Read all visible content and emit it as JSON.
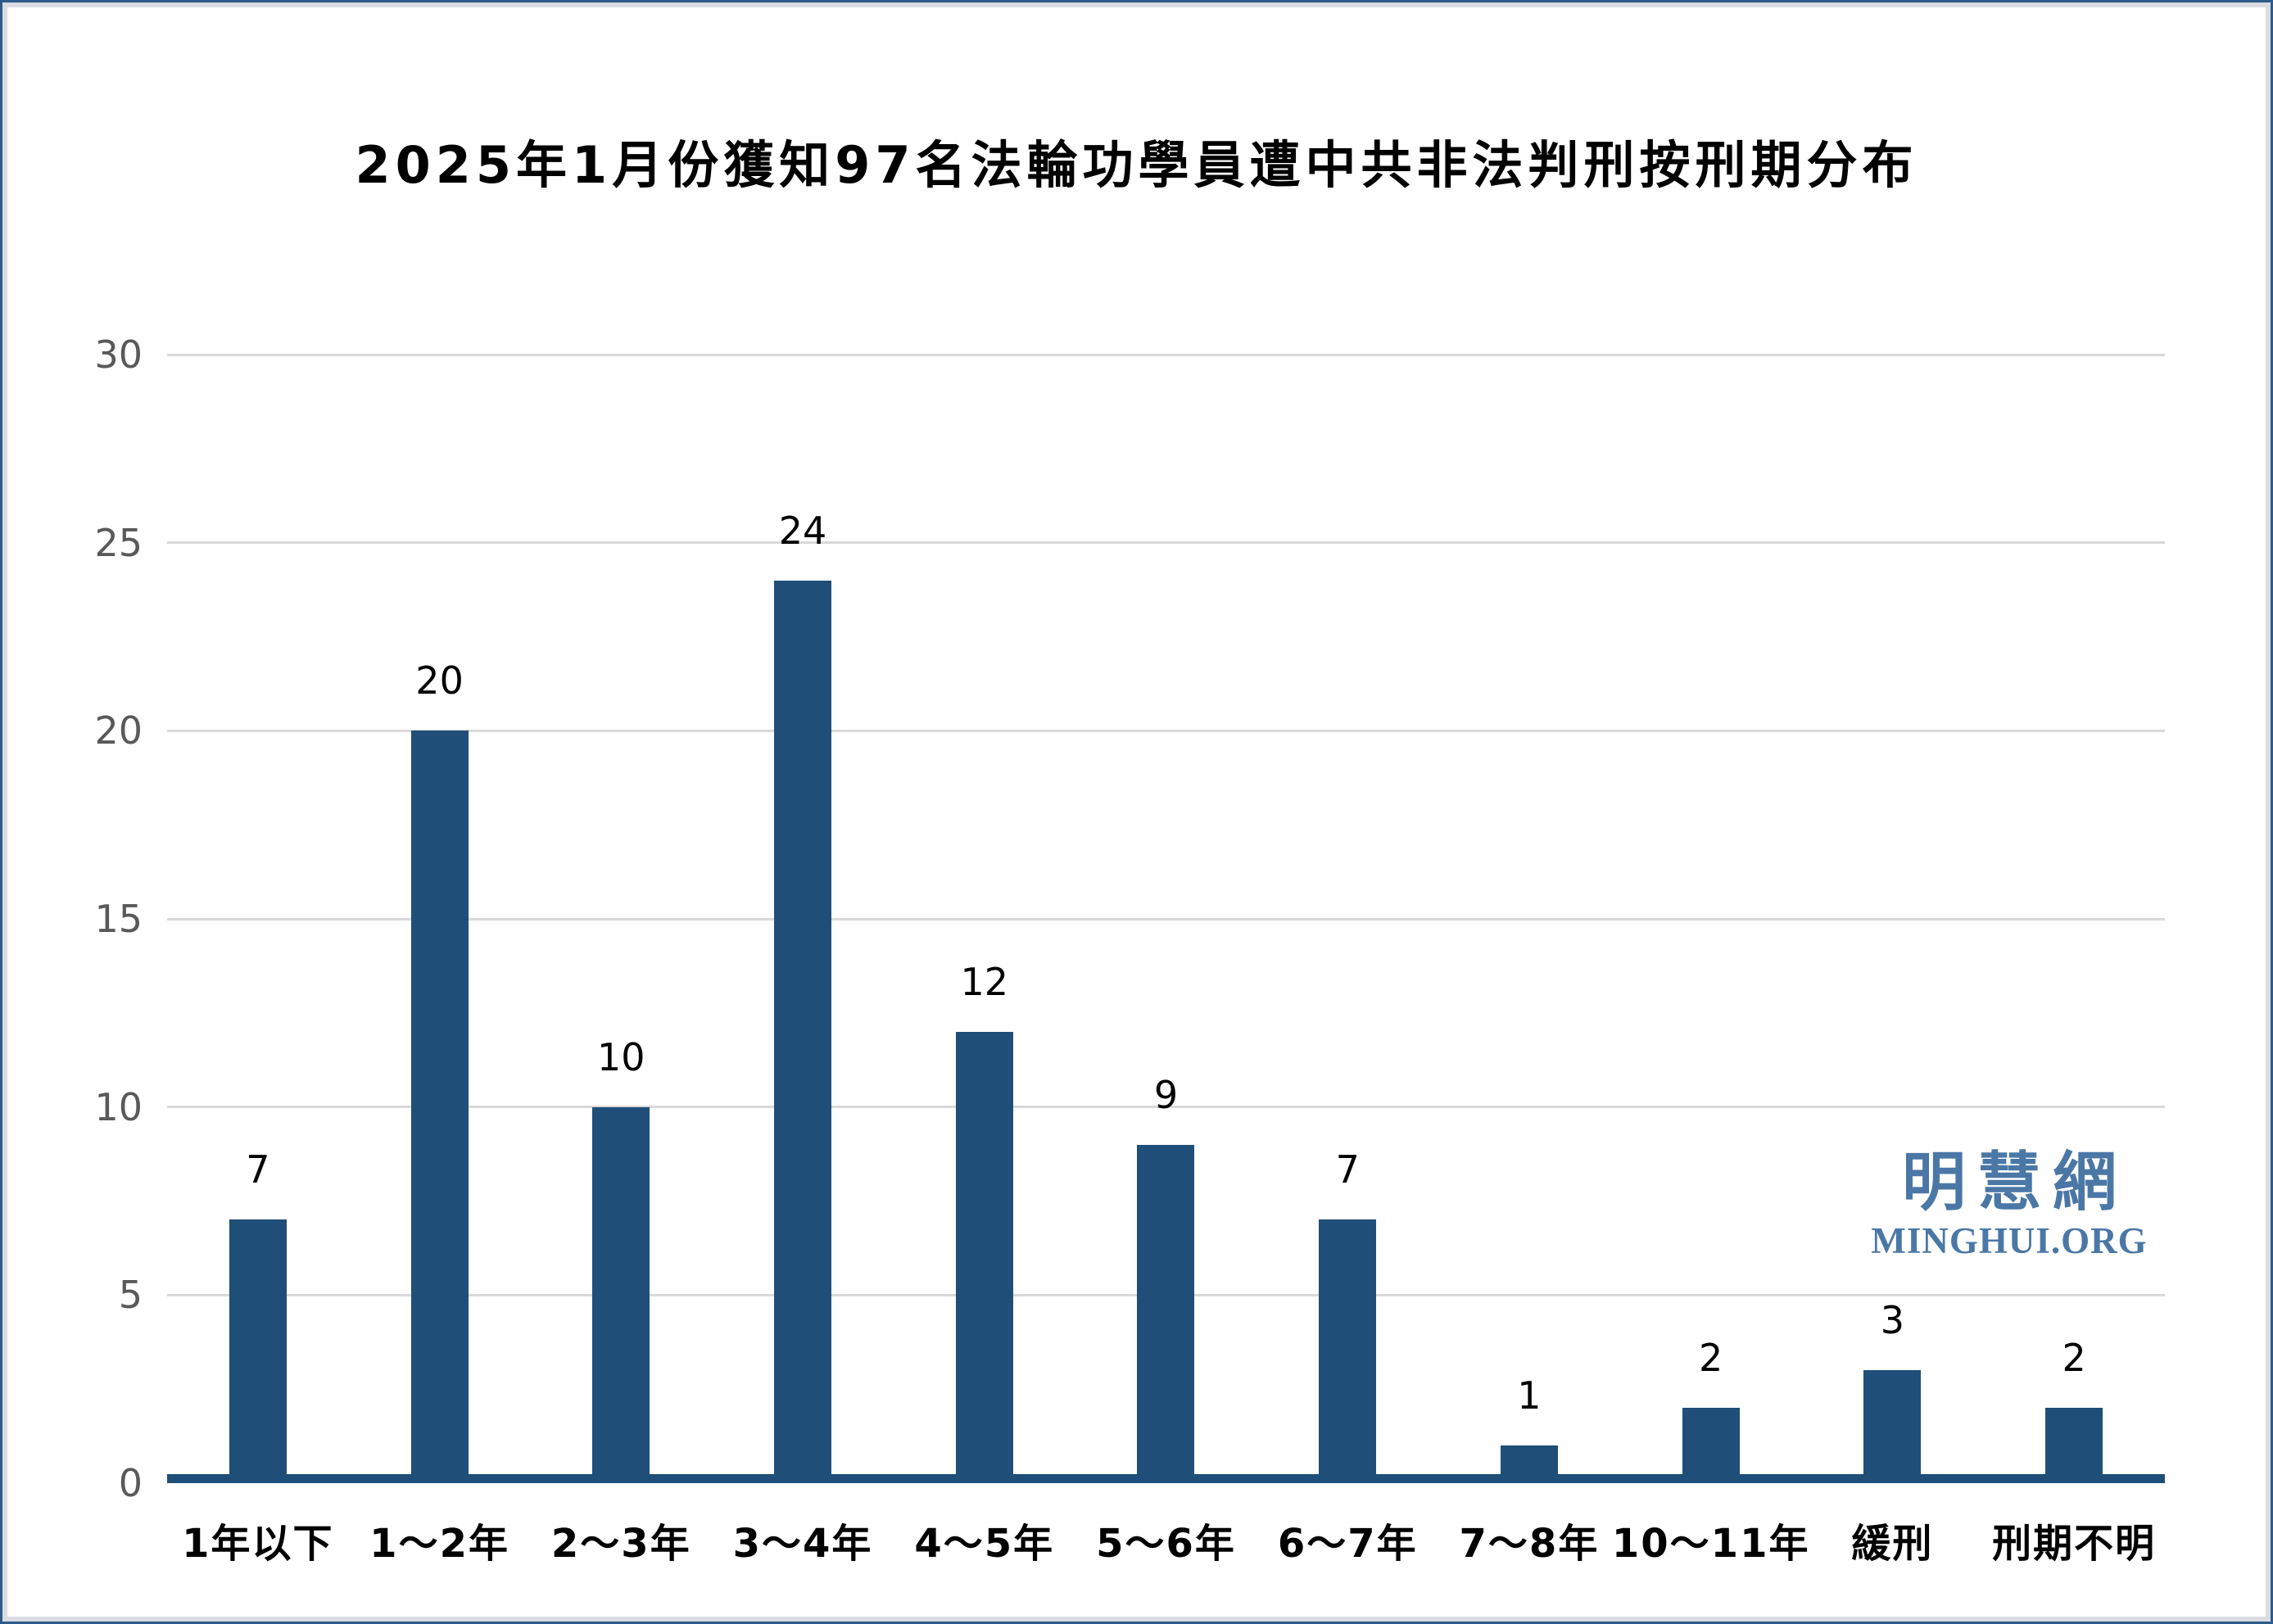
{
  "frame": {
    "outer_border_color": "#2e5c8c",
    "inner_border_color": "#d9dce1"
  },
  "watermark": {
    "cjk": "明慧網",
    "latin": "MINGHUI.ORG",
    "color": "#4a77a6"
  },
  "chart_data": {
    "type": "bar",
    "title": "2025年1月份獲知97名法輪功學員遭中共非法判刑按刑期分布",
    "categories": [
      "1年以下",
      "1～2年",
      "2～3年",
      "3～4年",
      "4～5年",
      "5～6年",
      "6～7年",
      "7～8年",
      "10～11年",
      "緩刑",
      "刑期不明"
    ],
    "values": [
      7,
      20,
      10,
      24,
      12,
      9,
      7,
      1,
      2,
      3,
      2
    ],
    "xlabel": "",
    "ylabel": "",
    "ylim": [
      0,
      30
    ],
    "y_ticks": [
      0,
      5,
      10,
      15,
      20,
      25,
      30
    ],
    "grid": true,
    "legend": "none",
    "bar_color": "#1f4e79",
    "axis_line_color": "#1f4e79",
    "gridline_color": "#d9d9d9",
    "tick_label_color": "#595959",
    "data_label_color": "#000000"
  }
}
